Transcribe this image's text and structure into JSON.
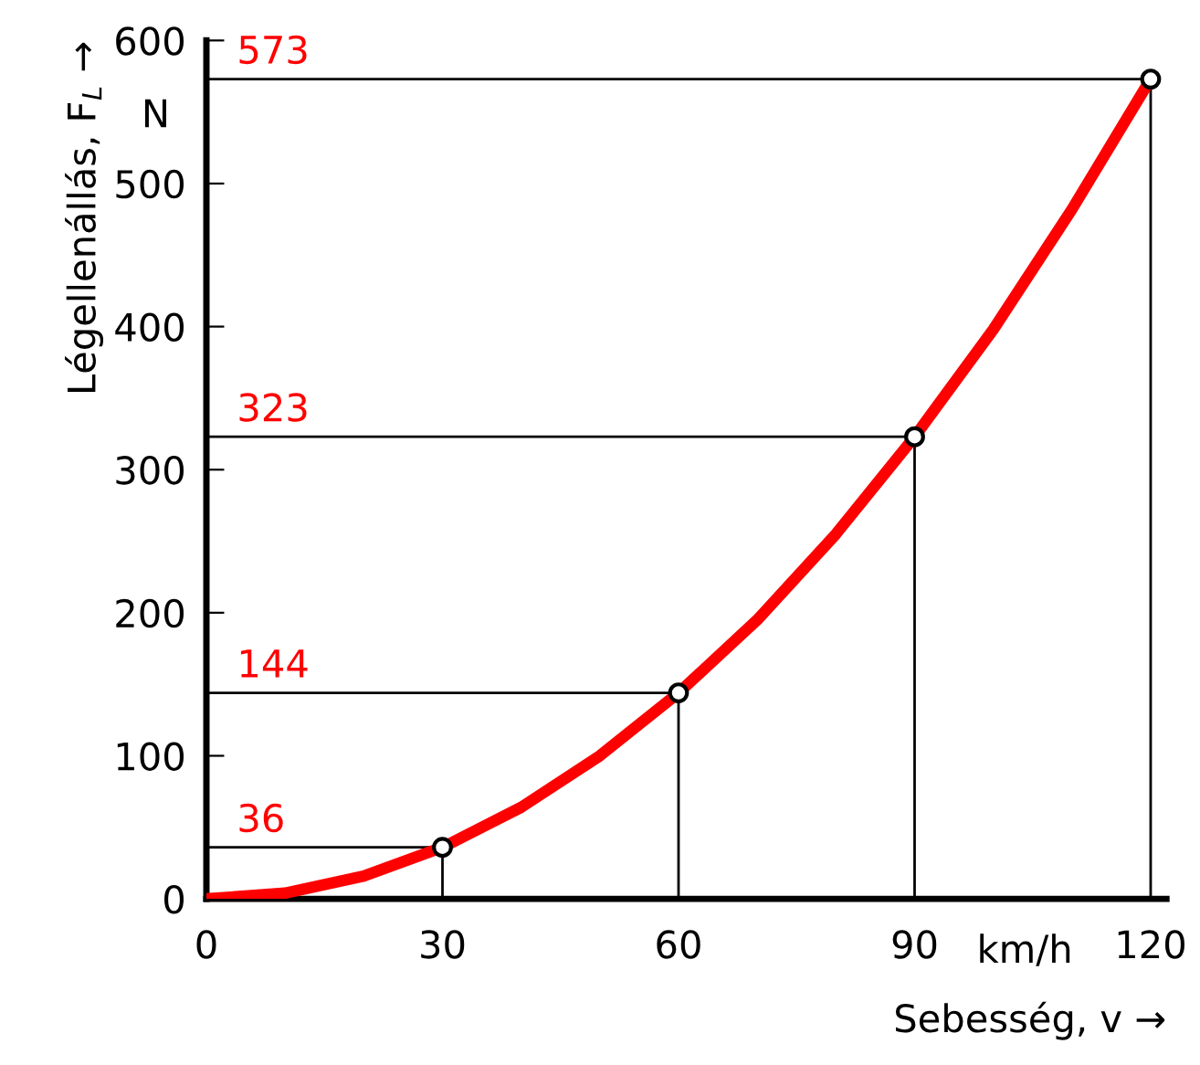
{
  "chart_data": {
    "type": "line",
    "xlabel": "Sebesség, v →",
    "ylabel": "Légellenállás, F$_{L}$ →",
    "xlim": [
      0,
      122
    ],
    "xticks": [
      0,
      30,
      60,
      90,
      120
    ],
    "ylim": [
      0,
      600
    ],
    "yticks": [
      0,
      100,
      200,
      300,
      400,
      500,
      600
    ],
    "series": [
      {
        "color": "#ff0000",
        "marker": "none",
        "line_style": "solid",
        "x": [
          0,
          10,
          20,
          30,
          40,
          50,
          60,
          70,
          80,
          90,
          100,
          110,
          120
        ],
        "values": [
          0,
          4,
          16,
          36,
          64,
          100,
          144,
          195,
          255,
          323,
          398,
          482,
          573
        ]
      },
      {
        "type": "lollipop",
        "color": "#000000",
        "marker": "circle",
        "x": [
          30,
          60,
          90,
          120
        ],
        "values": [
          36,
          144,
          323,
          573
        ]
      }
    ],
    "annotations": [
      {
        "text": "36",
        "x": 30,
        "y": 36
      },
      {
        "text": "144",
        "x": 60,
        "y": 144
      },
      {
        "text": "323",
        "x": 90,
        "y": 323
      },
      {
        "text": "573",
        "x": 120,
        "y": 573
      },
      "N",
      "km/h"
    ]
  }
}
